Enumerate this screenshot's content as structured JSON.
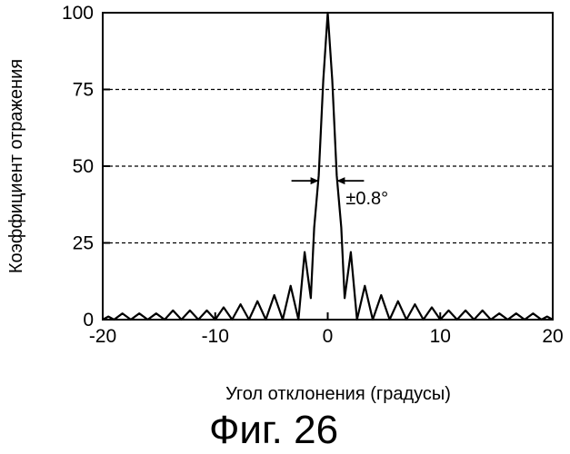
{
  "figure": {
    "caption": "Фиг. 26"
  },
  "chart_data": {
    "type": "line",
    "xlabel": "Угол отклонения (градусы)",
    "ylabel": "Коэффициент отражения",
    "xlim": [
      -20,
      20
    ],
    "ylim": [
      0,
      100
    ],
    "x_ticks": [
      -20,
      -10,
      0,
      10,
      20
    ],
    "x_tick_labels": [
      "-20",
      "-10",
      "0",
      "10",
      "20"
    ],
    "y_ticks": [
      0,
      25,
      50,
      75,
      100
    ],
    "y_tick_labels": [
      "0",
      "25",
      "50",
      "75",
      "100"
    ],
    "grid": {
      "horizontal_dashed_at": [
        25,
        50,
        75
      ],
      "vertical": false
    },
    "annotation": {
      "text": "±0.8°",
      "y": 47,
      "from_x": -0.8,
      "to_x": 0.8
    },
    "series": [
      {
        "points": [
          [
            -20.0,
            0
          ],
          [
            -19.5,
            1
          ],
          [
            -19.0,
            0
          ],
          [
            -18.25,
            2
          ],
          [
            -17.5,
            0
          ],
          [
            -16.75,
            2
          ],
          [
            -16.0,
            0
          ],
          [
            -15.25,
            2
          ],
          [
            -14.5,
            0
          ],
          [
            -13.75,
            3
          ],
          [
            -13.0,
            0
          ],
          [
            -12.25,
            3
          ],
          [
            -11.5,
            0
          ],
          [
            -10.75,
            3
          ],
          [
            -10.0,
            0
          ],
          [
            -9.25,
            4
          ],
          [
            -8.5,
            0
          ],
          [
            -7.75,
            5
          ],
          [
            -7.0,
            0
          ],
          [
            -6.25,
            6
          ],
          [
            -5.5,
            0
          ],
          [
            -4.75,
            8
          ],
          [
            -4.0,
            0
          ],
          [
            -3.3,
            11
          ],
          [
            -2.6,
            0
          ],
          [
            -2.05,
            22
          ],
          [
            -1.5,
            7
          ],
          [
            -1.2,
            30
          ],
          [
            -0.8,
            47
          ],
          [
            -0.4,
            78
          ],
          [
            0.0,
            100
          ],
          [
            0.4,
            78
          ],
          [
            0.8,
            47
          ],
          [
            1.2,
            30
          ],
          [
            1.5,
            7
          ],
          [
            2.05,
            22
          ],
          [
            2.6,
            0
          ],
          [
            3.3,
            11
          ],
          [
            4.0,
            0
          ],
          [
            4.75,
            8
          ],
          [
            5.5,
            0
          ],
          [
            6.25,
            6
          ],
          [
            7.0,
            0
          ],
          [
            7.75,
            5
          ],
          [
            8.5,
            0
          ],
          [
            9.25,
            4
          ],
          [
            10.0,
            0
          ],
          [
            10.75,
            3
          ],
          [
            11.5,
            0
          ],
          [
            12.25,
            3
          ],
          [
            13.0,
            0
          ],
          [
            13.75,
            3
          ],
          [
            14.5,
            0
          ],
          [
            15.25,
            2
          ],
          [
            16.0,
            0
          ],
          [
            16.75,
            2
          ],
          [
            17.5,
            0
          ],
          [
            18.25,
            2
          ],
          [
            19.0,
            0
          ],
          [
            19.5,
            1
          ],
          [
            20.0,
            0
          ]
        ]
      }
    ]
  },
  "colors": {
    "line": "#000000",
    "grid": "#000000",
    "background": "#ffffff"
  }
}
